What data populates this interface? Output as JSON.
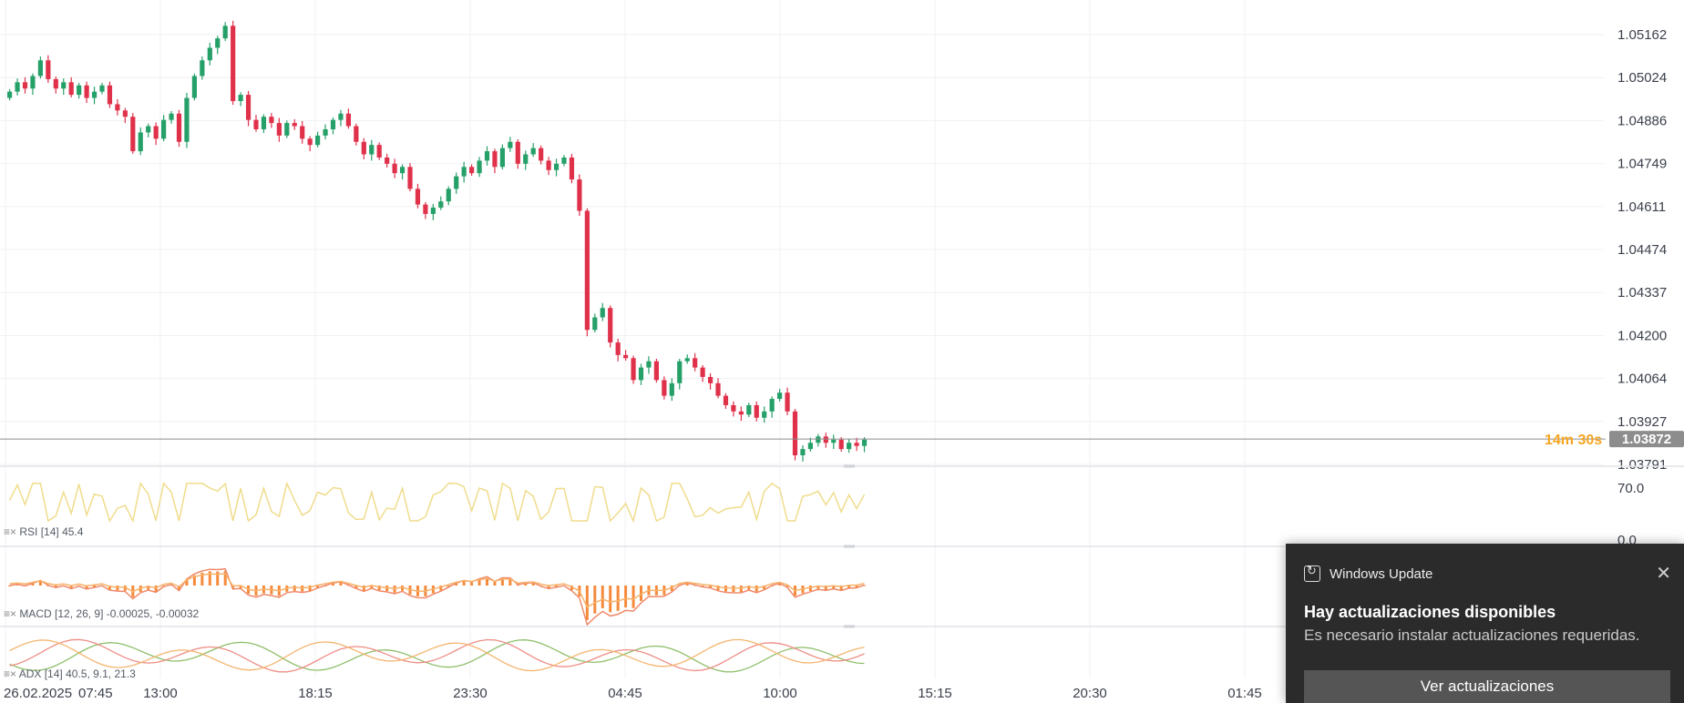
{
  "chart_data": {
    "type": "candlestick",
    "instrument_price_axis": [
      "1.05162",
      "1.05024",
      "1.04886",
      "1.04749",
      "1.04611",
      "1.04474",
      "1.04337",
      "1.04200",
      "1.04064",
      "1.03927",
      "1.03791"
    ],
    "current_price": "1.03872",
    "countdown": "14m 30s",
    "time_axis": [
      "26.02.2025",
      "07:45",
      "13:00",
      "18:15",
      "23:30",
      "04:45",
      "10:00",
      "15:15",
      "20:30",
      "01:45"
    ],
    "ylim": [
      1.0372,
      1.0524
    ],
    "close_series": [
      1.0498,
      1.0501,
      1.0499,
      1.0503,
      1.0508,
      1.0502,
      1.0499,
      1.0501,
      1.0497,
      1.05,
      1.0496,
      1.0498,
      1.05,
      1.0494,
      1.0492,
      1.049,
      1.0479,
      1.0485,
      1.0487,
      1.0483,
      1.0489,
      1.0491,
      1.0482,
      1.0496,
      1.0503,
      1.0508,
      1.0512,
      1.0515,
      1.0519,
      1.0495,
      1.0497,
      1.0489,
      1.0486,
      1.049,
      1.0488,
      1.0484,
      1.0488,
      1.0487,
      1.0483,
      1.0481,
      1.0484,
      1.0486,
      1.0489,
      1.0491,
      1.0487,
      1.0482,
      1.0478,
      1.0481,
      1.0477,
      1.0475,
      1.0472,
      1.0474,
      1.0467,
      1.0462,
      1.0459,
      1.0461,
      1.0463,
      1.0467,
      1.0471,
      1.0474,
      1.0472,
      1.0476,
      1.0479,
      1.0474,
      1.048,
      1.0482,
      1.0475,
      1.0478,
      1.048,
      1.0476,
      1.0473,
      1.0475,
      1.0477,
      1.047,
      1.046,
      1.0422,
      1.0426,
      1.0429,
      1.0418,
      1.0414,
      1.0413,
      1.0406,
      1.041,
      1.0412,
      1.0406,
      1.0401,
      1.0405,
      1.0412,
      1.0413,
      1.041,
      1.0407,
      1.0405,
      1.0401,
      1.0398,
      1.0396,
      1.0395,
      1.0398,
      1.0394,
      1.0396,
      1.04,
      1.0402,
      1.0396,
      1.0382,
      1.0384,
      1.0386,
      1.0388,
      1.0386,
      1.0387,
      1.0384,
      1.0386,
      1.0385,
      1.0387
    ],
    "rsi": {
      "label": "RSI",
      "params": "[14]",
      "value": "45.4",
      "levels": [
        "70.0",
        "0.0"
      ]
    },
    "macd": {
      "label": "MACD",
      "params": "[12, 26, 9]",
      "value1": "-0.00025",
      "value2": "-0.00032"
    },
    "adx": {
      "label": "ADX",
      "params": "[14]",
      "value1": "40.5",
      "value2": "9.1",
      "value3": "21.3"
    },
    "colors": {
      "up": "#26a069",
      "down": "#e0314b",
      "rsi_line": "#f0dc8c",
      "macd_hist": "#f58a3c",
      "macd_line": "#f08a6a",
      "signal_line": "#f7b26a",
      "adx_green": "#8fbf6a",
      "adx_red": "#ee8e86",
      "adx_orange": "#f4b56f",
      "price_line": "#8d8d8d",
      "countdown": "#f5a623"
    }
  },
  "notification": {
    "app": "Windows Update",
    "title": "Hay actualizaciones disponibles",
    "body": "Es necesario instalar actualizaciones requeridas.",
    "button": "Ver actualizaciones",
    "close_icon": "close-icon",
    "app_icon": "windows-update-icon"
  }
}
